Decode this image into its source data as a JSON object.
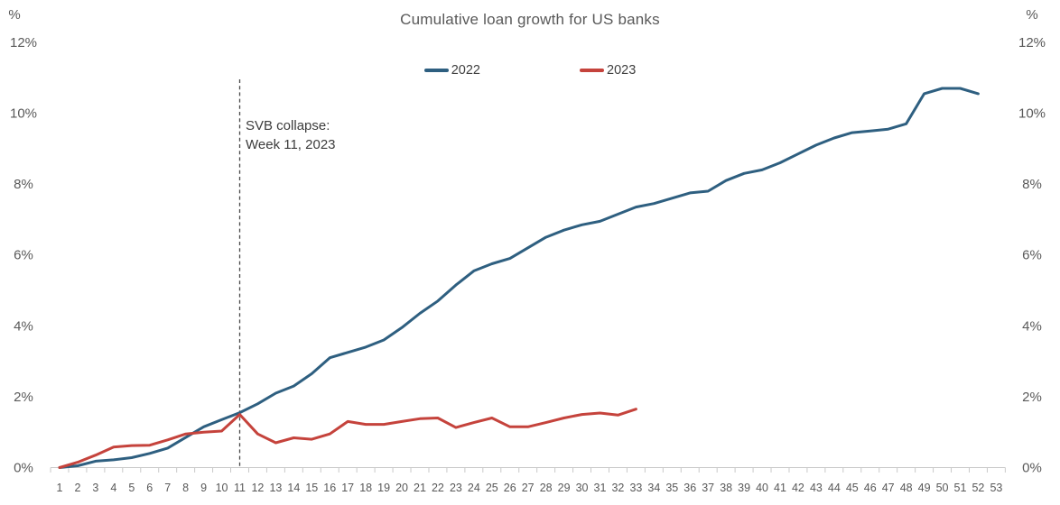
{
  "chart_data": {
    "type": "line",
    "title": "Cumulative loan growth for US banks",
    "y_unit": "%",
    "ylim": [
      0,
      12
    ],
    "y_tick_labels": [
      "0%",
      "2%",
      "4%",
      "6%",
      "8%",
      "10%",
      "12%"
    ],
    "y_tick_values": [
      0,
      2,
      4,
      6,
      8,
      10,
      12
    ],
    "x_tick_labels": [
      "1",
      "2",
      "3",
      "4",
      "5",
      "6",
      "7",
      "8",
      "9",
      "10",
      "11",
      "12",
      "13",
      "14",
      "15",
      "16",
      "17",
      "18",
      "19",
      "20",
      "21",
      "22",
      "23",
      "24",
      "25",
      "26",
      "27",
      "28",
      "29",
      "30",
      "31",
      "32",
      "33",
      "34",
      "35",
      "36",
      "37",
      "38",
      "39",
      "40",
      "41",
      "42",
      "43",
      "44",
      "45",
      "46",
      "47",
      "48",
      "49",
      "50",
      "51",
      "52",
      "53"
    ],
    "xlabel": "",
    "ylabel": "",
    "grid": false,
    "legend_position": "top-center",
    "annotation": {
      "line1": "SVB collapse:",
      "line2": "Week 11, 2023",
      "week": 11
    },
    "series": [
      {
        "name": "2022",
        "color": "#2e5f80",
        "start_week": 1,
        "values": [
          0,
          0.05,
          0.18,
          0.22,
          0.28,
          0.4,
          0.55,
          0.85,
          1.15,
          1.35,
          1.55,
          1.8,
          2.1,
          2.3,
          2.65,
          3.1,
          3.25,
          3.4,
          3.6,
          3.95,
          4.35,
          4.7,
          5.15,
          5.55,
          5.75,
          5.9,
          6.2,
          6.5,
          6.7,
          6.85,
          6.95,
          7.15,
          7.35,
          7.45,
          7.6,
          7.75,
          7.8,
          8.1,
          8.3,
          8.4,
          8.6,
          8.85,
          9.1,
          9.3,
          9.45,
          9.5,
          9.55,
          9.7,
          10.55,
          10.7,
          10.7,
          10.55
        ]
      },
      {
        "name": "2023",
        "color": "#c5433c",
        "start_week": 1,
        "values": [
          0,
          0.15,
          0.35,
          0.58,
          0.62,
          0.63,
          0.78,
          0.95,
          1.0,
          1.03,
          1.5,
          0.95,
          0.7,
          0.84,
          0.8,
          0.95,
          1.3,
          1.22,
          1.22,
          1.3,
          1.38,
          1.4,
          1.13,
          1.27,
          1.4,
          1.15,
          1.15,
          1.27,
          1.4,
          1.5,
          1.54,
          1.48,
          1.65
        ]
      }
    ],
    "axis_color": "#c9c9c9",
    "label_color": "#595959",
    "annotation_line_color": "#4a4a4a"
  }
}
